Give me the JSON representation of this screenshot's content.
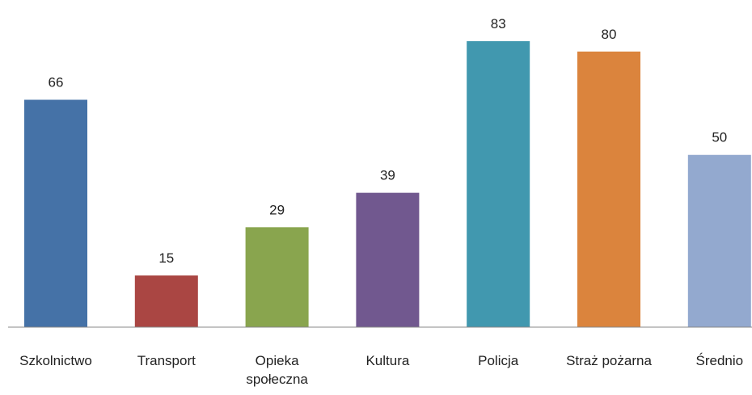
{
  "chart_data": {
    "type": "bar",
    "categories": [
      "Szkolnictwo",
      "Transport",
      "Opieka społeczna",
      "Kultura",
      "Policja",
      "Straż pożarna",
      "Średnio"
    ],
    "values": [
      66,
      15,
      29,
      39,
      83,
      80,
      50
    ],
    "colors": [
      "#4572a7",
      "#aa4643",
      "#89a54e",
      "#71588f",
      "#4198af",
      "#db843d",
      "#93a9cf"
    ]
  }
}
